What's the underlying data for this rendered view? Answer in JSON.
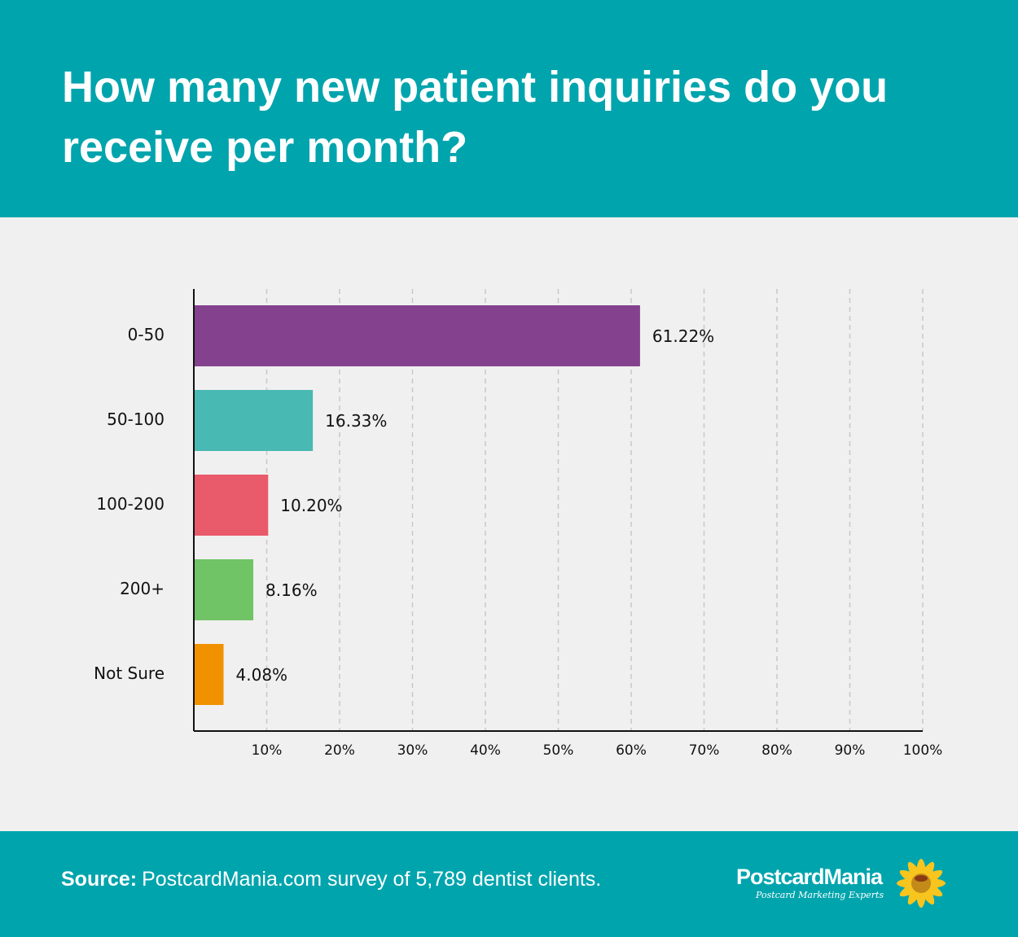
{
  "header": {
    "title": "How many new patient inquiries do you receive per month?"
  },
  "footer": {
    "source_label": "Source:",
    "source_text": "PostcardMania.com survey of 5,789 dentist clients.",
    "logo_name": "PostcardMania",
    "logo_tagline": "Postcard Marketing Experts"
  },
  "chart_data": {
    "type": "bar",
    "orientation": "horizontal",
    "title": "How many new patient inquiries do you receive per month?",
    "categories": [
      "0-50",
      "50-100",
      "100-200",
      "200+",
      "Not Sure"
    ],
    "values": [
      61.22,
      16.33,
      10.2,
      8.16,
      4.08
    ],
    "data_labels": [
      "61.22%",
      "16.33%",
      "10.20%",
      "8.16%",
      "4.08%"
    ],
    "colors": [
      "#84428e",
      "#48b9b3",
      "#e95a6b",
      "#70c466",
      "#f09100"
    ],
    "xlim": [
      0,
      100
    ],
    "xticks": [
      10,
      20,
      30,
      40,
      50,
      60,
      70,
      80,
      90,
      100
    ],
    "xtick_labels": [
      "10%",
      "20%",
      "30%",
      "40%",
      "50%",
      "60%",
      "70%",
      "80%",
      "90%",
      "100%"
    ],
    "grid": "vertical dashed",
    "xlabel": "",
    "ylabel": ""
  }
}
